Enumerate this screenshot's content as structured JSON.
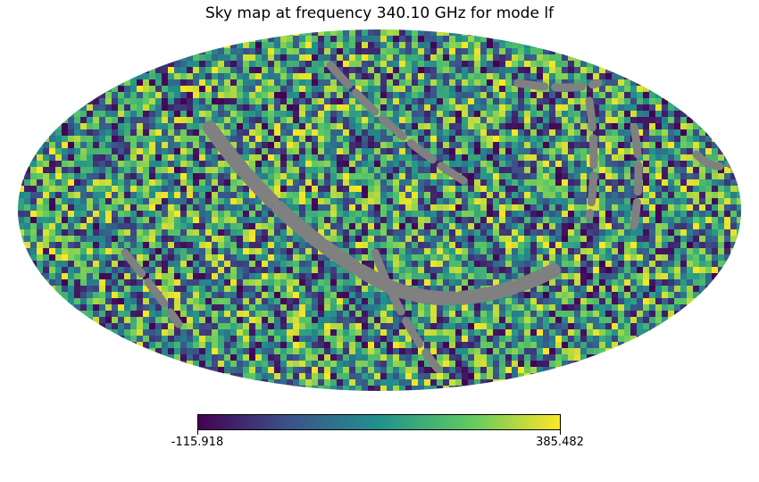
{
  "title": "Sky map at frequency 340.10 GHz for mode lf",
  "colorbar": {
    "min_label": "-115.918",
    "max_label": "385.482",
    "min": -115.918,
    "max": 385.482,
    "colormap": "viridis",
    "stops": [
      "#440154",
      "#3b528b",
      "#21918c",
      "#5ec962",
      "#fde725"
    ]
  },
  "map": {
    "projection": "mollweide",
    "missing_color": "#808080",
    "background": "#ffffff"
  }
}
